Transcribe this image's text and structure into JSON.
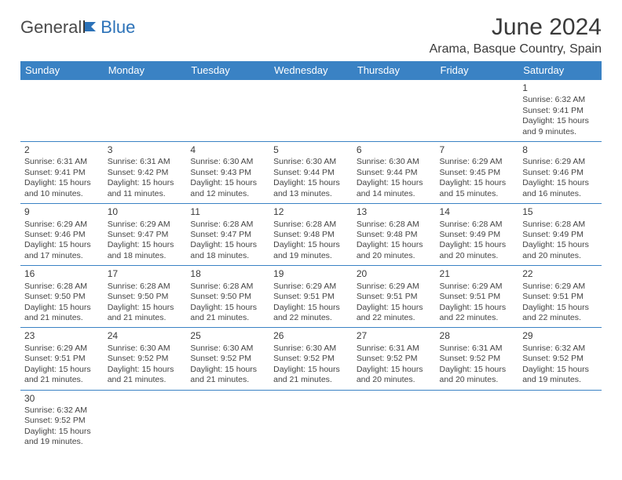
{
  "logo": {
    "part1": "General",
    "part2": "Blue"
  },
  "title": "June 2024",
  "location": "Arama, Basque Country, Spain",
  "colors": {
    "header_bg": "#3a82c4",
    "header_text": "#ffffff",
    "border": "#3a82c4",
    "text": "#3a3a3a",
    "logo_blue": "#2c72b8"
  },
  "daynames": [
    "Sunday",
    "Monday",
    "Tuesday",
    "Wednesday",
    "Thursday",
    "Friday",
    "Saturday"
  ],
  "weeks": [
    [
      null,
      null,
      null,
      null,
      null,
      null,
      {
        "n": "1",
        "sr": "6:32 AM",
        "ss": "9:41 PM",
        "dl": "15 hours and 9 minutes."
      }
    ],
    [
      {
        "n": "2",
        "sr": "6:31 AM",
        "ss": "9:41 PM",
        "dl": "15 hours and 10 minutes."
      },
      {
        "n": "3",
        "sr": "6:31 AM",
        "ss": "9:42 PM",
        "dl": "15 hours and 11 minutes."
      },
      {
        "n": "4",
        "sr": "6:30 AM",
        "ss": "9:43 PM",
        "dl": "15 hours and 12 minutes."
      },
      {
        "n": "5",
        "sr": "6:30 AM",
        "ss": "9:44 PM",
        "dl": "15 hours and 13 minutes."
      },
      {
        "n": "6",
        "sr": "6:30 AM",
        "ss": "9:44 PM",
        "dl": "15 hours and 14 minutes."
      },
      {
        "n": "7",
        "sr": "6:29 AM",
        "ss": "9:45 PM",
        "dl": "15 hours and 15 minutes."
      },
      {
        "n": "8",
        "sr": "6:29 AM",
        "ss": "9:46 PM",
        "dl": "15 hours and 16 minutes."
      }
    ],
    [
      {
        "n": "9",
        "sr": "6:29 AM",
        "ss": "9:46 PM",
        "dl": "15 hours and 17 minutes."
      },
      {
        "n": "10",
        "sr": "6:29 AM",
        "ss": "9:47 PM",
        "dl": "15 hours and 18 minutes."
      },
      {
        "n": "11",
        "sr": "6:28 AM",
        "ss": "9:47 PM",
        "dl": "15 hours and 18 minutes."
      },
      {
        "n": "12",
        "sr": "6:28 AM",
        "ss": "9:48 PM",
        "dl": "15 hours and 19 minutes."
      },
      {
        "n": "13",
        "sr": "6:28 AM",
        "ss": "9:48 PM",
        "dl": "15 hours and 20 minutes."
      },
      {
        "n": "14",
        "sr": "6:28 AM",
        "ss": "9:49 PM",
        "dl": "15 hours and 20 minutes."
      },
      {
        "n": "15",
        "sr": "6:28 AM",
        "ss": "9:49 PM",
        "dl": "15 hours and 20 minutes."
      }
    ],
    [
      {
        "n": "16",
        "sr": "6:28 AM",
        "ss": "9:50 PM",
        "dl": "15 hours and 21 minutes."
      },
      {
        "n": "17",
        "sr": "6:28 AM",
        "ss": "9:50 PM",
        "dl": "15 hours and 21 minutes."
      },
      {
        "n": "18",
        "sr": "6:28 AM",
        "ss": "9:50 PM",
        "dl": "15 hours and 21 minutes."
      },
      {
        "n": "19",
        "sr": "6:29 AM",
        "ss": "9:51 PM",
        "dl": "15 hours and 22 minutes."
      },
      {
        "n": "20",
        "sr": "6:29 AM",
        "ss": "9:51 PM",
        "dl": "15 hours and 22 minutes."
      },
      {
        "n": "21",
        "sr": "6:29 AM",
        "ss": "9:51 PM",
        "dl": "15 hours and 22 minutes."
      },
      {
        "n": "22",
        "sr": "6:29 AM",
        "ss": "9:51 PM",
        "dl": "15 hours and 22 minutes."
      }
    ],
    [
      {
        "n": "23",
        "sr": "6:29 AM",
        "ss": "9:51 PM",
        "dl": "15 hours and 21 minutes."
      },
      {
        "n": "24",
        "sr": "6:30 AM",
        "ss": "9:52 PM",
        "dl": "15 hours and 21 minutes."
      },
      {
        "n": "25",
        "sr": "6:30 AM",
        "ss": "9:52 PM",
        "dl": "15 hours and 21 minutes."
      },
      {
        "n": "26",
        "sr": "6:30 AM",
        "ss": "9:52 PM",
        "dl": "15 hours and 21 minutes."
      },
      {
        "n": "27",
        "sr": "6:31 AM",
        "ss": "9:52 PM",
        "dl": "15 hours and 20 minutes."
      },
      {
        "n": "28",
        "sr": "6:31 AM",
        "ss": "9:52 PM",
        "dl": "15 hours and 20 minutes."
      },
      {
        "n": "29",
        "sr": "6:32 AM",
        "ss": "9:52 PM",
        "dl": "15 hours and 19 minutes."
      }
    ],
    [
      {
        "n": "30",
        "sr": "6:32 AM",
        "ss": "9:52 PM",
        "dl": "15 hours and 19 minutes."
      },
      null,
      null,
      null,
      null,
      null,
      null
    ]
  ],
  "labels": {
    "sunrise": "Sunrise: ",
    "sunset": "Sunset: ",
    "daylight": "Daylight: "
  }
}
